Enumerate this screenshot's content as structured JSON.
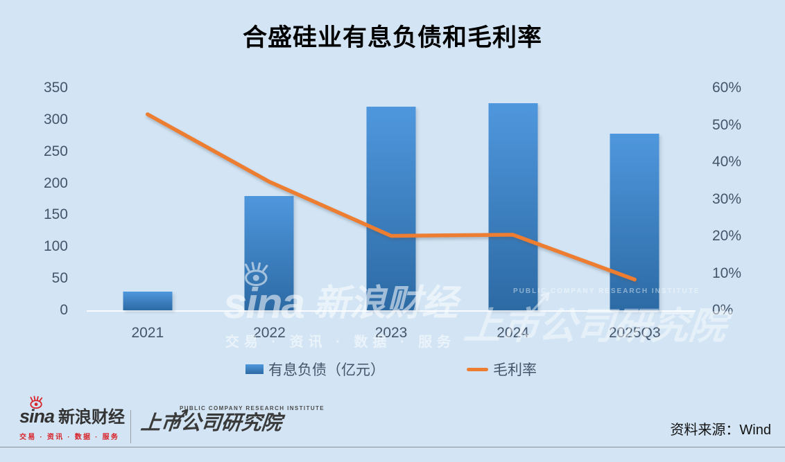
{
  "title": "合盛硅业有息负债和毛利率",
  "chart_data": {
    "type": "combo-bar-line",
    "title": "合盛硅业有息负债和毛利率",
    "categories": [
      "2021",
      "2022",
      "2023",
      "2024",
      "2025Q3"
    ],
    "series": [
      {
        "name": "有息负债（亿元）",
        "type": "bar",
        "axis": "left",
        "values": [
          30,
          180,
          321,
          326,
          278
        ],
        "color_top": "#4f97dd",
        "color_bottom": "#2c6aa4"
      },
      {
        "name": "毛利率",
        "type": "line",
        "axis": "right",
        "values": [
          52.9,
          34.7,
          20.1,
          20.4,
          8.3
        ],
        "color": "#ED7D31"
      }
    ],
    "left_axis": {
      "min": 0,
      "max": 350,
      "step": 50,
      "ticks": [
        "350",
        "300",
        "250",
        "200",
        "150",
        "100",
        "50",
        "0"
      ]
    },
    "right_axis": {
      "min": 0,
      "max": 60,
      "step": 10,
      "ticks": [
        "60%",
        "50%",
        "40%",
        "30%",
        "20%",
        "10%",
        "0%"
      ]
    },
    "grid": false,
    "legend_position": "bottom"
  },
  "colors": {
    "background": "#d3e5f4",
    "axis_text": "#44546a",
    "title_text": "#000000",
    "bar_top": "#4f97dd",
    "bar_bottom": "#2c6aa4",
    "line": "#ED7D31",
    "sina_red": "#d8232a",
    "logo_dark": "#333333"
  },
  "watermarks": {
    "sina": {
      "brand": "sina",
      "cn": "新浪财经",
      "tagline": "交易 · 资讯 · 数据 · 服务"
    },
    "institute": {
      "en": "PUBLIC COMPANY RESEARCH INSTITUTE",
      "cn": "上市公司研究院"
    }
  },
  "footer": {
    "sina_logo": {
      "brand": "sina",
      "cn": "新浪财经",
      "tagline": "交易 · 资讯 · 数据 · 服务"
    },
    "institute_logo": {
      "en": "PUBLIC COMPANY RESEARCH INSTITUTE",
      "cn": "上市公司研究院"
    },
    "source": "资料来源：Wind"
  }
}
